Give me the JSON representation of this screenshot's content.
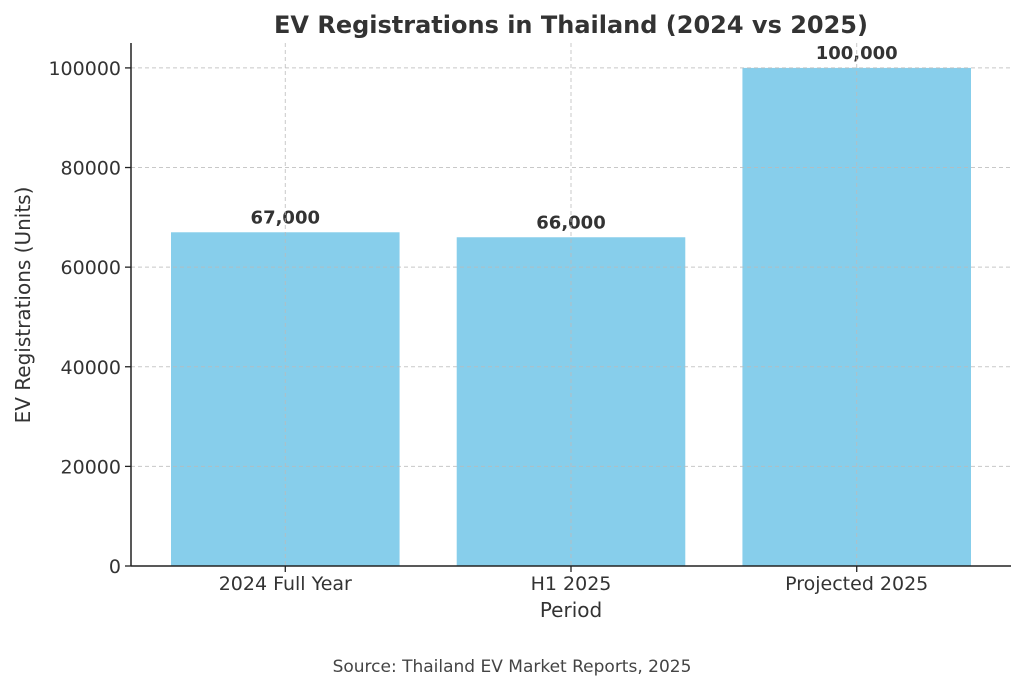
{
  "chart_data": {
    "type": "bar",
    "title": "EV Registrations in Thailand (2024 vs 2025)",
    "xlabel": "Period",
    "ylabel": "EV Registrations (Units)",
    "categories": [
      "2024 Full Year",
      "H1 2025",
      "Projected 2025"
    ],
    "values": [
      67000,
      66000,
      100000
    ],
    "data_labels": [
      "67,000",
      "66,000",
      "100,000"
    ],
    "yticks": [
      0,
      20000,
      40000,
      60000,
      80000,
      100000
    ],
    "ytick_labels": [
      "0",
      "20000",
      "40000",
      "60000",
      "80000",
      "100000"
    ],
    "ylim": [
      0,
      105000
    ],
    "grid": true,
    "bar_color": "#87ceeb"
  },
  "source": "Source: Thailand EV Market Reports, 2025"
}
